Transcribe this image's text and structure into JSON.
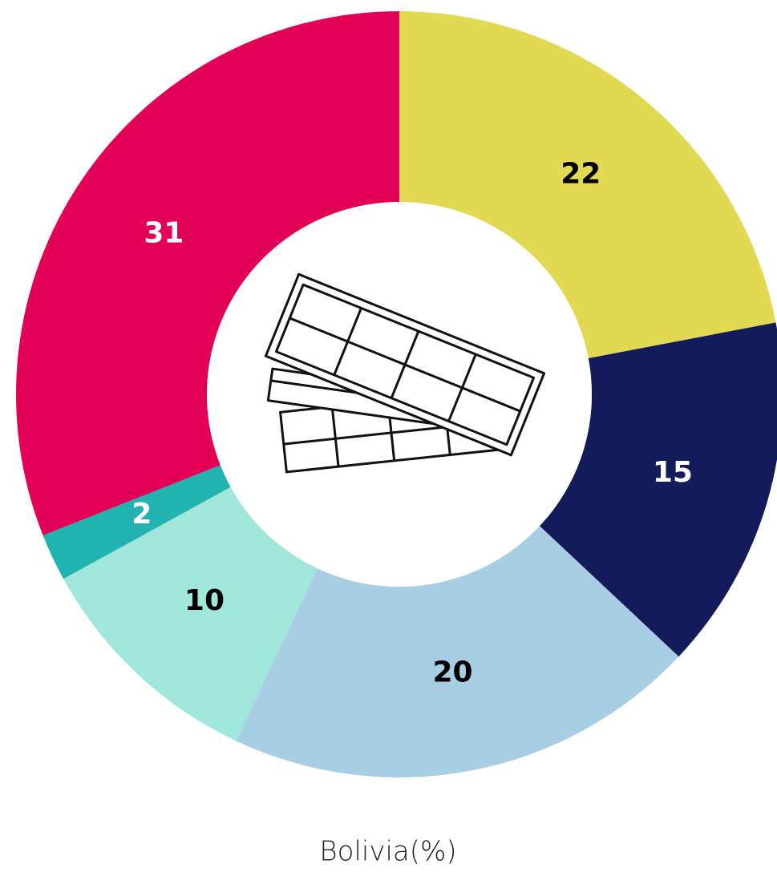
{
  "chart_data": {
    "type": "donut",
    "title": "Bolivia(%)",
    "values": [
      22,
      15,
      20,
      10,
      2,
      31
    ],
    "colors": [
      "#e2d952",
      "#141b5a",
      "#a7cee2",
      "#a1e6da",
      "#20b3b0",
      "#e30057"
    ]
  }
}
